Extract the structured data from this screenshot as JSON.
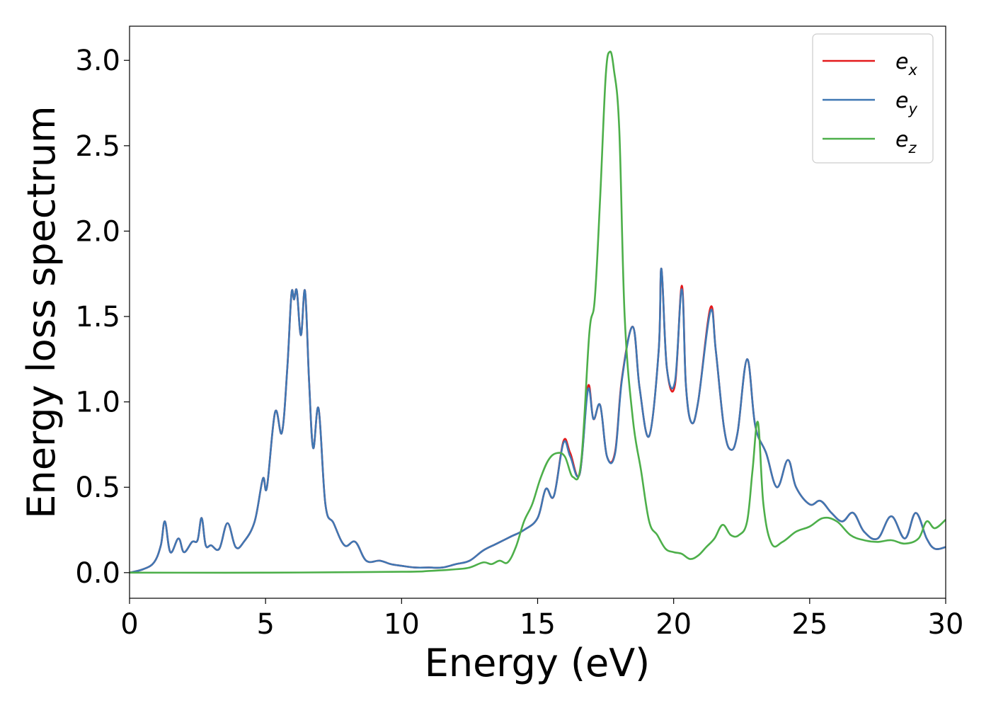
{
  "chart_data": {
    "type": "line",
    "title": "",
    "xlabel": "Energy (eV)",
    "ylabel": "Energy loss spectrum",
    "xlim": [
      0,
      30
    ],
    "ylim": [
      -0.15,
      3.2
    ],
    "xticks": [
      0,
      5,
      10,
      15,
      20,
      25,
      30
    ],
    "xtick_labels": [
      "0",
      "5",
      "10",
      "15",
      "20",
      "25",
      "30"
    ],
    "yticks": [
      0.0,
      0.5,
      1.0,
      1.5,
      2.0,
      2.5,
      3.0
    ],
    "ytick_labels": [
      "0.0",
      "0.5",
      "1.0",
      "1.5",
      "2.0",
      "2.5",
      "3.0"
    ],
    "grid": false,
    "legend_position": "top-right",
    "series": [
      {
        "name": "e_x",
        "legend_main": "e",
        "legend_sub": "x",
        "color": "#e41a1c",
        "x": [
          0,
          0.5,
          0.9,
          1.15,
          1.3,
          1.5,
          1.8,
          2.0,
          2.3,
          2.5,
          2.65,
          2.8,
          3.0,
          3.3,
          3.6,
          3.9,
          4.2,
          4.6,
          4.9,
          5.05,
          5.35,
          5.6,
          5.8,
          5.95,
          6.05,
          6.15,
          6.3,
          6.45,
          6.6,
          6.75,
          6.95,
          7.2,
          7.5,
          7.9,
          8.3,
          8.7,
          9.2,
          9.6,
          10.0,
          10.5,
          11.0,
          11.5,
          12.0,
          12.5,
          13.0,
          13.5,
          14.0,
          14.5,
          15.0,
          15.3,
          15.6,
          15.95,
          16.2,
          16.55,
          16.85,
          17.05,
          17.3,
          17.55,
          17.85,
          18.1,
          18.5,
          18.75,
          19.1,
          19.45,
          19.55,
          19.75,
          20.05,
          20.3,
          20.45,
          20.65,
          20.9,
          21.35,
          21.55,
          21.85,
          22.1,
          22.35,
          22.7,
          23.0,
          23.4,
          23.8,
          24.2,
          24.5,
          25.0,
          25.4,
          25.8,
          26.2,
          26.6,
          27.0,
          27.5,
          28.0,
          28.5,
          28.9,
          29.3,
          29.6,
          30.0
        ],
        "y": [
          0.0,
          0.02,
          0.06,
          0.16,
          0.3,
          0.12,
          0.2,
          0.12,
          0.18,
          0.19,
          0.32,
          0.16,
          0.16,
          0.14,
          0.29,
          0.15,
          0.18,
          0.3,
          0.55,
          0.5,
          0.94,
          0.82,
          1.2,
          1.63,
          1.6,
          1.65,
          1.39,
          1.65,
          1.12,
          0.73,
          0.96,
          0.4,
          0.29,
          0.16,
          0.18,
          0.07,
          0.07,
          0.05,
          0.04,
          0.03,
          0.03,
          0.03,
          0.05,
          0.07,
          0.13,
          0.17,
          0.21,
          0.25,
          0.32,
          0.49,
          0.45,
          0.77,
          0.7,
          0.58,
          1.09,
          0.9,
          0.98,
          0.68,
          0.71,
          1.14,
          1.44,
          1.08,
          0.8,
          1.3,
          1.78,
          1.2,
          1.1,
          1.68,
          1.1,
          0.88,
          1.0,
          1.55,
          1.3,
          0.85,
          0.72,
          0.82,
          1.25,
          0.86,
          0.7,
          0.5,
          0.66,
          0.5,
          0.4,
          0.42,
          0.35,
          0.3,
          0.35,
          0.24,
          0.2,
          0.33,
          0.2,
          0.35,
          0.2,
          0.14,
          0.15
        ]
      },
      {
        "name": "e_y",
        "legend_main": "e",
        "legend_sub": "y",
        "color": "#3f77b3",
        "x": [
          0,
          0.5,
          0.9,
          1.15,
          1.3,
          1.5,
          1.8,
          2.0,
          2.3,
          2.5,
          2.65,
          2.8,
          3.0,
          3.3,
          3.6,
          3.9,
          4.2,
          4.6,
          4.9,
          5.05,
          5.35,
          5.6,
          5.8,
          5.95,
          6.05,
          6.15,
          6.3,
          6.45,
          6.6,
          6.75,
          6.95,
          7.2,
          7.5,
          7.9,
          8.3,
          8.7,
          9.2,
          9.6,
          10.0,
          10.5,
          11.0,
          11.5,
          12.0,
          12.5,
          13.0,
          13.5,
          14.0,
          14.5,
          15.0,
          15.3,
          15.6,
          15.95,
          16.2,
          16.55,
          16.85,
          17.05,
          17.3,
          17.55,
          17.85,
          18.1,
          18.5,
          18.75,
          19.1,
          19.45,
          19.55,
          19.75,
          20.05,
          20.3,
          20.45,
          20.65,
          20.9,
          21.35,
          21.55,
          21.85,
          22.1,
          22.35,
          22.7,
          23.0,
          23.4,
          23.8,
          24.2,
          24.5,
          25.0,
          25.4,
          25.8,
          26.2,
          26.6,
          27.0,
          27.5,
          28.0,
          28.5,
          28.9,
          29.3,
          29.6,
          30.0
        ],
        "y": [
          0.0,
          0.02,
          0.06,
          0.16,
          0.3,
          0.12,
          0.2,
          0.12,
          0.18,
          0.19,
          0.32,
          0.16,
          0.16,
          0.14,
          0.29,
          0.15,
          0.18,
          0.3,
          0.55,
          0.5,
          0.94,
          0.82,
          1.2,
          1.63,
          1.6,
          1.65,
          1.39,
          1.65,
          1.12,
          0.73,
          0.96,
          0.4,
          0.29,
          0.16,
          0.18,
          0.07,
          0.07,
          0.05,
          0.04,
          0.03,
          0.03,
          0.03,
          0.05,
          0.07,
          0.13,
          0.17,
          0.21,
          0.25,
          0.32,
          0.49,
          0.45,
          0.76,
          0.68,
          0.58,
          1.07,
          0.9,
          0.98,
          0.68,
          0.7,
          1.13,
          1.44,
          1.08,
          0.8,
          1.3,
          1.78,
          1.2,
          1.12,
          1.66,
          1.1,
          0.88,
          1.0,
          1.53,
          1.3,
          0.85,
          0.72,
          0.82,
          1.25,
          0.86,
          0.7,
          0.5,
          0.66,
          0.5,
          0.4,
          0.42,
          0.35,
          0.3,
          0.35,
          0.24,
          0.2,
          0.33,
          0.2,
          0.35,
          0.2,
          0.14,
          0.15
        ]
      },
      {
        "name": "e_z",
        "legend_main": "e",
        "legend_sub": "z",
        "color": "#4daf4a",
        "x": [
          0,
          5,
          10,
          11,
          12,
          12.5,
          13.0,
          13.3,
          13.6,
          13.9,
          14.2,
          14.5,
          14.8,
          15.1,
          15.4,
          15.7,
          16.0,
          16.3,
          16.6,
          16.9,
          17.1,
          17.3,
          17.5,
          17.65,
          17.8,
          18.0,
          18.2,
          18.5,
          18.8,
          19.1,
          19.4,
          19.7,
          20.0,
          20.3,
          20.6,
          20.9,
          21.2,
          21.5,
          21.8,
          22.1,
          22.4,
          22.7,
          22.9,
          23.1,
          23.3,
          23.6,
          24.0,
          24.5,
          25.0,
          25.5,
          26.0,
          26.5,
          27.0,
          27.5,
          28.0,
          28.5,
          29.0,
          29.3,
          29.6,
          30.0
        ],
        "y": [
          0.0,
          0.0,
          0.005,
          0.01,
          0.02,
          0.03,
          0.06,
          0.05,
          0.07,
          0.06,
          0.15,
          0.3,
          0.4,
          0.55,
          0.66,
          0.7,
          0.68,
          0.56,
          0.65,
          1.4,
          1.6,
          2.2,
          2.9,
          3.05,
          2.95,
          2.6,
          1.5,
          0.9,
          0.6,
          0.3,
          0.22,
          0.14,
          0.12,
          0.11,
          0.08,
          0.1,
          0.15,
          0.2,
          0.28,
          0.22,
          0.22,
          0.3,
          0.6,
          0.88,
          0.4,
          0.17,
          0.18,
          0.24,
          0.27,
          0.32,
          0.3,
          0.22,
          0.19,
          0.18,
          0.19,
          0.17,
          0.2,
          0.3,
          0.26,
          0.31
        ]
      }
    ]
  }
}
